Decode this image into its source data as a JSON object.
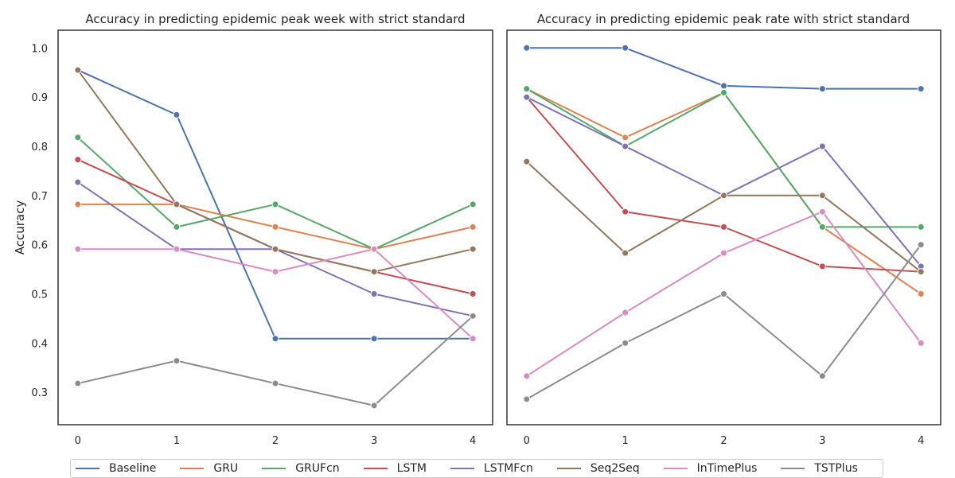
{
  "chart_data": [
    {
      "type": "line",
      "title": "Accuracy in predicting epidemic peak week with strict standard",
      "xlabel": "",
      "ylabel": "Accuracy",
      "x": [
        0,
        1,
        2,
        3,
        4
      ],
      "xticks": [
        "0",
        "1",
        "2",
        "3",
        "4"
      ],
      "yticks": [
        "0.3",
        "0.4",
        "0.5",
        "0.6",
        "0.7",
        "0.8",
        "0.9",
        "1.0"
      ],
      "ylim": [
        0.234,
        1.036
      ],
      "xlim": [
        -0.2,
        4.2
      ],
      "grid": false,
      "series": [
        {
          "name": "Baseline",
          "values": [
            0.955,
            0.864,
            0.409,
            0.409,
            0.409
          ]
        },
        {
          "name": "GRU",
          "values": [
            0.682,
            0.682,
            0.636,
            0.591,
            0.636
          ]
        },
        {
          "name": "GRUFcn",
          "values": [
            0.818,
            0.636,
            0.682,
            0.591,
            0.682
          ]
        },
        {
          "name": "LSTM",
          "values": [
            0.773,
            0.682,
            0.591,
            0.545,
            0.5
          ]
        },
        {
          "name": "LSTMFcn",
          "values": [
            0.727,
            0.591,
            0.591,
            0.5,
            0.455
          ]
        },
        {
          "name": "Seq2Seq",
          "values": [
            0.955,
            0.682,
            0.591,
            0.545,
            0.591
          ]
        },
        {
          "name": "InTimePlus",
          "values": [
            0.591,
            0.591,
            0.545,
            0.591,
            0.409
          ]
        },
        {
          "name": "TSTPlus",
          "values": [
            0.318,
            0.364,
            0.318,
            0.273,
            0.455
          ]
        }
      ]
    },
    {
      "type": "line",
      "title": "Accuracy in predicting epidemic peak rate with strict standard",
      "xlabel": "",
      "ylabel": "",
      "x": [
        0,
        1,
        2,
        3,
        4
      ],
      "xticks": [
        "0",
        "1",
        "2",
        "3",
        "4"
      ],
      "ylim": [
        0.234,
        1.036
      ],
      "xlim": [
        -0.2,
        4.2
      ],
      "grid": false,
      "series": [
        {
          "name": "Baseline",
          "values": [
            1.0,
            1.0,
            0.923,
            0.917,
            0.917
          ]
        },
        {
          "name": "GRU",
          "values": [
            0.917,
            0.818,
            0.909,
            0.636,
            0.5
          ]
        },
        {
          "name": "GRUFcn",
          "values": [
            0.917,
            0.8,
            0.909,
            0.636,
            0.636
          ]
        },
        {
          "name": "LSTM",
          "values": [
            0.9,
            0.667,
            0.636,
            0.556,
            0.545
          ]
        },
        {
          "name": "LSTMFcn",
          "values": [
            0.9,
            0.8,
            0.7,
            0.8,
            0.556
          ]
        },
        {
          "name": "Seq2Seq",
          "values": [
            0.769,
            0.583,
            0.7,
            0.7,
            0.545
          ]
        },
        {
          "name": "InTimePlus",
          "values": [
            0.333,
            0.462,
            0.583,
            0.667,
            0.4
          ]
        },
        {
          "name": "TSTPlus",
          "values": [
            0.286,
            0.4,
            0.5,
            0.333,
            0.6
          ]
        }
      ]
    }
  ],
  "legend": {
    "placement": "bottom",
    "items": [
      {
        "label": "Baseline",
        "color": "#4c72b0"
      },
      {
        "label": "GRU",
        "color": "#dd8452"
      },
      {
        "label": "GRUFcn",
        "color": "#55a868"
      },
      {
        "label": "LSTM",
        "color": "#c44e52"
      },
      {
        "label": "LSTMFcn",
        "color": "#8172b3"
      },
      {
        "label": "Seq2Seq",
        "color": "#937860"
      },
      {
        "label": "InTimePlus",
        "color": "#da8bc3"
      },
      {
        "label": "TSTPlus",
        "color": "#8c8c8c"
      }
    ]
  }
}
